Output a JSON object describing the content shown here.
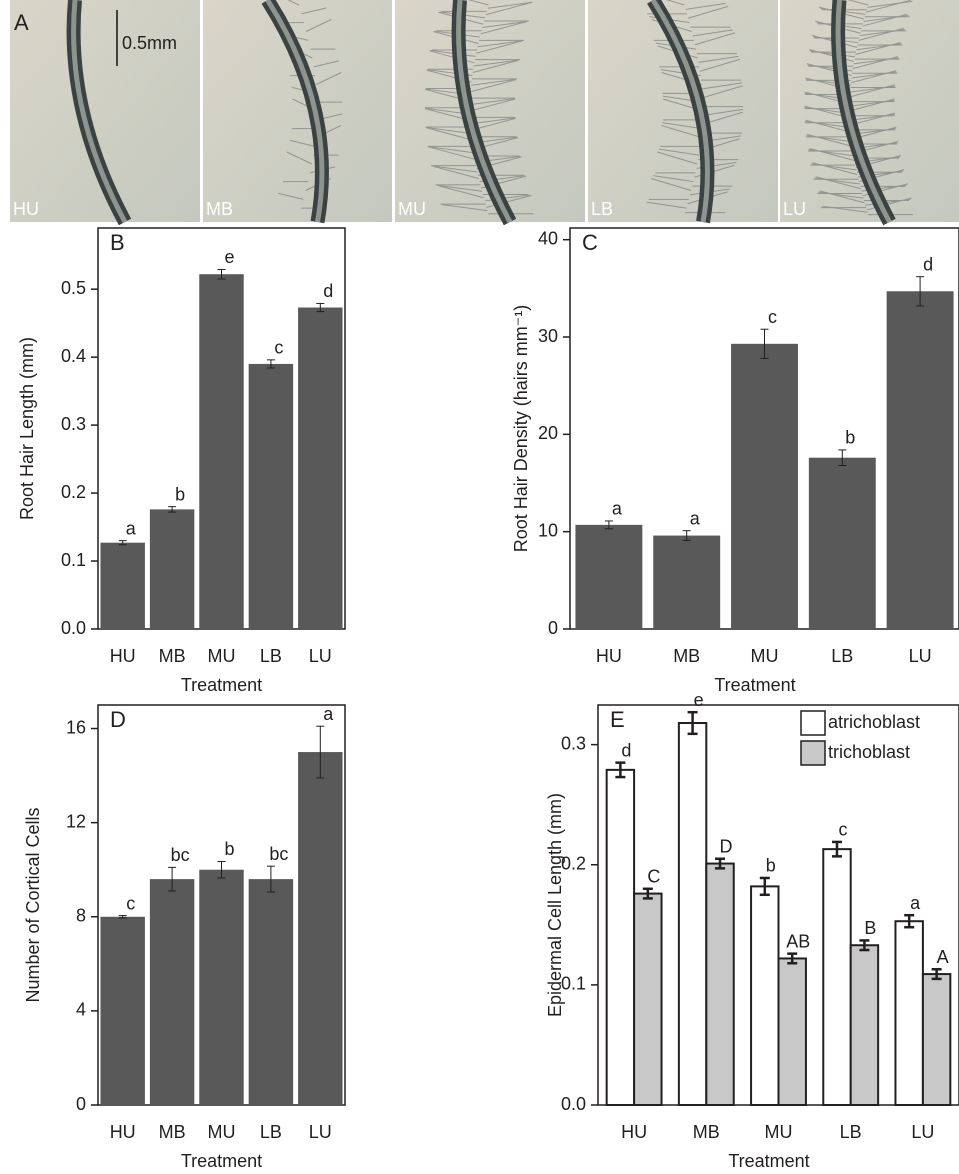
{
  "panel_a": {
    "label": "A",
    "scale_bar": "0.5mm",
    "photos": [
      "HU",
      "MB",
      "MU",
      "LB",
      "LU"
    ]
  },
  "chart_data": [
    {
      "type": "bar",
      "panel": "B",
      "y_label": "Root Hair Length (mm)",
      "x_label": "Treatment",
      "categories": [
        "HU",
        "MB",
        "MU",
        "LB",
        "LU"
      ],
      "values": [
        0.127,
        0.176,
        0.522,
        0.39,
        0.473
      ],
      "errors": [
        0.003,
        0.004,
        0.007,
        0.006,
        0.006
      ],
      "letters": [
        "a",
        "b",
        "e",
        "c",
        "d"
      ],
      "color": "#595959",
      "ylim": [
        0,
        0.59
      ],
      "yticks": [
        {
          "value": 0,
          "label": "0.0"
        },
        0.1,
        0.2,
        0.3,
        0.4,
        0.5
      ]
    },
    {
      "type": "bar",
      "panel": "C",
      "y_label": "Root Hair Density (hairs mm⁻¹)",
      "x_label": "Treatment",
      "categories": [
        "HU",
        "MB",
        "MU",
        "LB",
        "LU"
      ],
      "values": [
        10.7,
        9.6,
        29.3,
        17.6,
        34.7
      ],
      "errors": [
        0.4,
        0.5,
        1.5,
        0.8,
        1.5
      ],
      "letters": [
        "a",
        "a",
        "c",
        "b",
        "d"
      ],
      "color": "#595959",
      "ylim": [
        0,
        41.2
      ],
      "yticks": [
        0,
        10,
        20,
        30,
        40
      ]
    },
    {
      "type": "bar",
      "panel": "D",
      "y_label": "Number of Cortical Cells",
      "x_label": "Treatment",
      "categories": [
        "HU",
        "MB",
        "MU",
        "LB",
        "LU"
      ],
      "values": [
        8.0,
        9.6,
        10.0,
        9.6,
        15.0
      ],
      "errors": [
        0.05,
        0.5,
        0.35,
        0.55,
        1.1
      ],
      "letters": [
        "c",
        "bc",
        "b",
        "bc",
        "a"
      ],
      "color": "#595959",
      "ylim": [
        0,
        17
      ],
      "yticks": [
        0,
        4,
        8,
        12,
        16
      ]
    },
    {
      "type": "grouped_bar",
      "panel": "E",
      "y_label": "Epidermal Cell Length (mm)",
      "x_label": "Treatment",
      "categories": [
        "HU",
        "MB",
        "MU",
        "LB",
        "LU"
      ],
      "legend": "upper right",
      "series": [
        {
          "name": "atrichoblast",
          "color": "#ffffff",
          "values": [
            0.279,
            0.318,
            0.182,
            0.213,
            0.153
          ],
          "errors": [
            0.006,
            0.009,
            0.007,
            0.006,
            0.005
          ],
          "letters": [
            "d",
            "e",
            "b",
            "c",
            "a"
          ]
        },
        {
          "name": "trichoblast",
          "color": "#c8c8c8",
          "values": [
            0.176,
            0.201,
            0.122,
            0.133,
            0.109
          ],
          "errors": [
            0.004,
            0.004,
            0.004,
            0.004,
            0.004
          ],
          "letters": [
            "C",
            "D",
            "AB",
            "B",
            "A"
          ]
        }
      ],
      "ylim": [
        0,
        0.333
      ],
      "yticks": [
        {
          "value": 0,
          "label": "0.0"
        },
        0.1,
        0.2,
        0.3
      ]
    }
  ]
}
